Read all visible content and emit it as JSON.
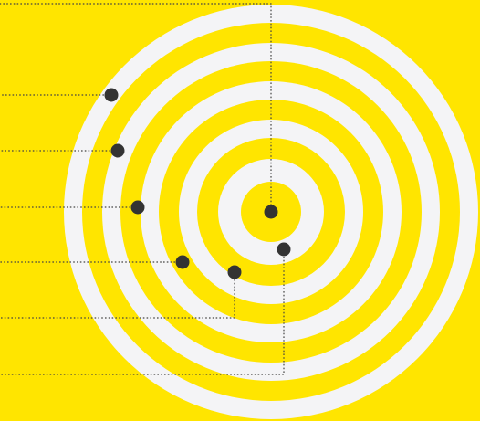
{
  "colors": {
    "background": "#FFE500",
    "ring_light": "#F4F4F6",
    "dot": "#333333",
    "leader_line": "#444444"
  },
  "target": {
    "ring_count": 10,
    "center_icon": "bullseye-dot"
  },
  "markers": [
    {
      "id": "marker-1",
      "icon": "dot-icon"
    },
    {
      "id": "marker-2",
      "icon": "dot-icon"
    },
    {
      "id": "marker-3",
      "icon": "dot-icon"
    },
    {
      "id": "marker-4",
      "icon": "dot-icon"
    },
    {
      "id": "marker-5",
      "icon": "dot-icon"
    },
    {
      "id": "marker-6",
      "icon": "dot-icon"
    },
    {
      "id": "marker-7",
      "icon": "dot-icon"
    }
  ]
}
